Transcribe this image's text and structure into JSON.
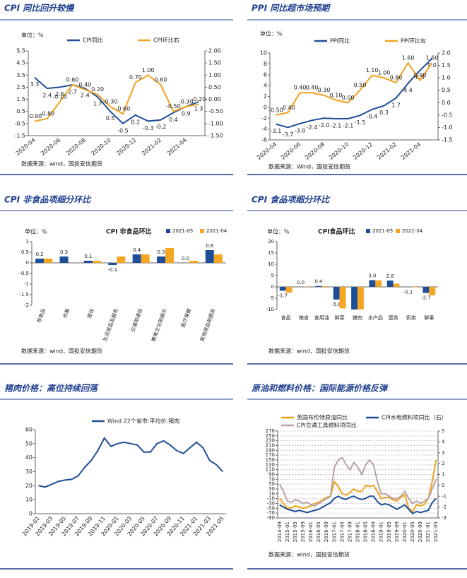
{
  "chart_data": [
    {
      "type": "line",
      "title": "CPI 同比回升较慢",
      "unit": "单位：%",
      "categories": [
        "2020-04",
        null,
        "2020-06",
        null,
        "2020-08",
        null,
        "2020-10",
        null,
        "2020-12",
        null,
        "2021-02",
        null,
        "2021-04",
        null
      ],
      "series": [
        {
          "name": "CPI同比",
          "color": "#1f4e99",
          "values": [
            3.3,
            2.4,
            2.5,
            2.7,
            2.4,
            1.7,
            0.5,
            -0.5,
            0.2,
            -0.3,
            -0.2,
            0.4,
            0.9,
            1.3
          ]
        },
        {
          "name": "CPI环比右",
          "color": "#f0a21e",
          "axis": "y2",
          "values": [
            -0.9,
            -0.8,
            -0.1,
            0.6,
            0.4,
            0.2,
            -0.3,
            -0.6,
            0.7,
            1.0,
            0.6,
            -0.5,
            -0.3,
            -0.2
          ],
          "value_labels": [
            "-0.90",
            "-0.80",
            "-0.10",
            "0.60",
            "0.40",
            "0.20",
            "-0.30",
            "-0.60",
            "0.70",
            "1.00",
            "0.60",
            "-0.50",
            "-0.30",
            "-0.20"
          ]
        }
      ],
      "data_labels": true,
      "ylim": [
        -1.5,
        5.5
      ],
      "yticks": [
        5.5,
        4.5,
        3.5,
        2.5,
        1.5,
        0.5,
        -0.5,
        -1.5
      ],
      "y2lim": [
        -1.5,
        2
      ],
      "y2ticks": [
        {
          "value": 2,
          "label": "2.00"
        },
        {
          "value": 1.5,
          "label": "1.50"
        },
        {
          "value": 1,
          "label": "1.00"
        },
        {
          "value": 0.5,
          "label": "0.50"
        },
        {
          "value": 0,
          "label": "0.00"
        },
        {
          "value": -0.5,
          "label": "-0.50"
        },
        {
          "value": -1,
          "label": "-1.00"
        },
        {
          "value": -1.5,
          "label": "-1.50"
        }
      ],
      "source": "数据来源：wind，国投安信期货"
    },
    {
      "type": "line",
      "title": "PPI 同比超市场预期",
      "unit": "单位：%",
      "categories": [
        "2020-04",
        null,
        "2020-06",
        null,
        "2020-08",
        null,
        "2020-10",
        null,
        "2020-12",
        null,
        "2021-02",
        null,
        "2021-04",
        null
      ],
      "series": [
        {
          "name": "PPI同比",
          "color": "#1f4e99",
          "values": [
            -3.1,
            -3.7,
            -3.0,
            -2.4,
            -2.0,
            -2.1,
            -2.1,
            -1.5,
            -0.4,
            0.3,
            1.7,
            4.4,
            6.8,
            9.0
          ],
          "value_labels": [
            "-3.1",
            "-3.7",
            "-3.0",
            "-2.4",
            "-2.0",
            "-2.1",
            "-2.1",
            "-1.5",
            "-0.4",
            "0.3",
            "1.7",
            "4.4",
            "6.8",
            "9.0"
          ]
        },
        {
          "name": "PPI环比右",
          "color": "#f0a21e",
          "axis": "y2",
          "values": [
            -0.5,
            -0.4,
            0.4,
            0.4,
            0.3,
            0.1,
            0.0,
            0.5,
            1.1,
            1.0,
            0.8,
            1.6,
            0.9,
            1.6
          ],
          "value_labels": [
            "-0.50",
            "-0.40",
            "0.40",
            "0.40",
            "0.30",
            "0.10",
            "0.00",
            "0.50",
            "1.10",
            "1.00",
            "0.80",
            "1.60",
            "0.90",
            "1.60"
          ]
        }
      ],
      "data_labels": true,
      "ylim": [
        -6,
        10
      ],
      "yticks": [
        10,
        8,
        6,
        4,
        2,
        0,
        -2,
        -4,
        -6
      ],
      "y2lim": [
        -1.5,
        2
      ],
      "y2ticks": [
        {
          "value": 2,
          "label": "2.0"
        },
        1.5,
        {
          "value": 1,
          "label": "1.0"
        },
        0.5,
        {
          "value": 0,
          "label": "0.0"
        },
        -0.5,
        {
          "value": -1,
          "label": "-1.0"
        },
        -1.5
      ],
      "source": "数据来源：Wind，国投安信期货"
    },
    {
      "type": "bar",
      "title": "CPI 非食品项细分环比",
      "chart_title": "CPI 非食品环比",
      "unit": "单位：%",
      "categories": [
        "非食品",
        "衣着",
        "居住",
        "生活用品及服务",
        "交通和通信",
        "教育文化和娱乐",
        "医疗保健",
        "其他用品和服务"
      ],
      "series": [
        {
          "name": "2021-05",
          "color": "#1f4e99",
          "values": [
            0.2,
            0.3,
            0.1,
            -0.1,
            0.4,
            0.3,
            0.0,
            0.6
          ],
          "value_labels": [
            "0.2",
            "0.3",
            "0.1",
            "-0.1",
            "0.4",
            "0.3",
            "0.0",
            "0.6"
          ]
        },
        {
          "name": "2021-04",
          "color": "#f5a623",
          "values": [
            0.2,
            0.0,
            0.1,
            0.3,
            0.4,
            0.7,
            0.1,
            0.4
          ]
        }
      ],
      "data_labels": true,
      "ylim": [
        -2,
        1
      ],
      "yticks": [
        1,
        0.5,
        0,
        -0.5,
        -1,
        -1.5,
        -2
      ],
      "source": "数据来源：wind，国投安信期货"
    },
    {
      "type": "bar",
      "title": "CPI 食品项细分环比",
      "chart_title": "CPI食品环比",
      "unit": "单位：%",
      "categories": [
        "食品",
        "粮食",
        "食用油",
        "鲜菜",
        "猪肉",
        "水产品",
        "蛋类",
        "奶类",
        "鲜果"
      ],
      "series": [
        {
          "name": "2021-05",
          "color": "#1f4e99",
          "values": [
            -1.7,
            0.0,
            0.4,
            -5.6,
            -10.0,
            3.0,
            2.8,
            -0.1,
            -2.7
          ],
          "value_labels": [
            "-1.7",
            "0.0",
            "0.4",
            "-5.6",
            null,
            "3.0",
            "2.8",
            "-0.1",
            "-2.7"
          ]
        },
        {
          "name": "2021-04",
          "color": "#f5a623",
          "values": [
            -2.5,
            0.1,
            0.3,
            -9.5,
            -10.0,
            2.9,
            1.4,
            -0.2,
            -3.7
          ]
        }
      ],
      "data_labels": true,
      "ylim": [
        -10,
        20
      ],
      "yticks": [
        20,
        15,
        10,
        5,
        0,
        -5,
        -10
      ],
      "source": "数据来源：wind，国投安信期货"
    },
    {
      "type": "line",
      "title": "猪肉价格：高位持续回落",
      "categories": [
        "2019-01",
        null,
        "2019-03",
        null,
        "2019-05",
        null,
        "2019-07",
        null,
        "2019-09",
        null,
        "2019-11",
        null,
        "2020-01",
        null,
        "2020-03",
        null,
        "2020-05",
        null,
        "2020-07",
        null,
        "2020-09",
        null,
        "2020-11",
        null,
        "2021-01",
        null,
        "2021-03",
        null,
        "2021-05"
      ],
      "series": [
        {
          "name": "Wind 22个省市:平均价:猪肉",
          "color": "#1f4e99",
          "values": [
            20,
            19,
            21,
            23,
            24,
            24.5,
            27,
            33,
            38,
            45,
            54,
            48,
            50,
            51,
            50,
            49,
            44,
            44,
            50,
            52,
            49,
            45,
            43,
            47,
            51,
            47,
            38,
            35,
            30
          ]
        }
      ],
      "ylim": [
        0,
        60
      ],
      "yticks": [
        60,
        50,
        40,
        30,
        20,
        10,
        0
      ]
    },
    {
      "type": "line",
      "title": "原油和燃料价格：国际能源价格反弹",
      "grid": true,
      "categories": [
        "2014-09",
        null,
        "2015-01",
        null,
        "2015-05",
        null,
        "2015-09",
        null,
        "2016-01",
        null,
        "2016-05",
        null,
        "2016-09",
        null,
        "2017-01",
        null,
        "2017-05",
        null,
        "2017-09",
        null,
        "2018-01",
        null,
        "2018-05",
        null,
        "2018-09",
        null,
        "2019-01",
        null,
        "2019-05",
        null,
        "2019-09",
        null,
        "2020-01",
        null,
        "2020-05",
        null,
        "2020-09",
        null,
        "2021-01",
        null,
        "2021-05"
      ],
      "series": [
        {
          "name": "英国布伦特原油同比",
          "color": "#f0a21e",
          "values": [
            -10,
            -30,
            -50,
            -48,
            -40,
            -45,
            -50,
            -45,
            -40,
            -30,
            -25,
            -15,
            -5,
            0,
            60,
            40,
            10,
            5,
            15,
            30,
            20,
            20,
            45,
            40,
            45,
            20,
            -10,
            -5,
            -5,
            -15,
            -20,
            -5,
            5,
            -50,
            -65,
            -35,
            -40,
            -35,
            -10,
            60,
            150
          ]
        },
        {
          "name": "CPI水电燃料项同比（右）",
          "color": "#1f4e99",
          "axis": "y2",
          "values": [
            -1.8,
            -2.0,
            -2.2,
            -2.3,
            -2.4,
            -2.3,
            -2.4,
            -2.5,
            -2.4,
            -2.3,
            -2.2,
            -2.0,
            -1.8,
            -1.6,
            -1.2,
            -1.0,
            -1.2,
            -1.3,
            -1.1,
            -1.0,
            -1.2,
            -1.3,
            -1.2,
            -1.0,
            -1.0,
            -1.5,
            -1.8,
            -1.7,
            -1.8,
            -2.0,
            -2.2,
            -2.0,
            -1.8,
            -2.2,
            -2.6,
            -2.4,
            -2.5,
            -2.4,
            -2.3,
            -1.6,
            -1.2
          ]
        },
        {
          "name": "CPI交通工具燃料项同比",
          "color": "#b9a2a2",
          "values": [
            50,
            20,
            -20,
            -25,
            -15,
            -20,
            -30,
            -25,
            -35,
            -40,
            -30,
            -20,
            -10,
            0,
            120,
            150,
            160,
            130,
            110,
            140,
            120,
            90,
            130,
            150,
            130,
            60,
            10,
            10,
            0,
            -10,
            -10,
            0,
            20,
            -10,
            -30,
            -20,
            -30,
            -20,
            -10,
            30,
            70
          ]
        }
      ],
      "ylim": [
        -90,
        270
      ],
      "yticks": [
        270,
        250,
        230,
        210,
        190,
        170,
        150,
        130,
        110,
        90,
        70,
        50,
        30,
        10,
        -10,
        -30,
        -50,
        -70,
        -90
      ],
      "y2lim": [
        -3,
        5
      ],
      "y2ticks": [
        5,
        4,
        3,
        2,
        1,
        0,
        -1,
        -2,
        -3
      ],
      "source": "数据来源：wind，国投安信期货"
    }
  ]
}
